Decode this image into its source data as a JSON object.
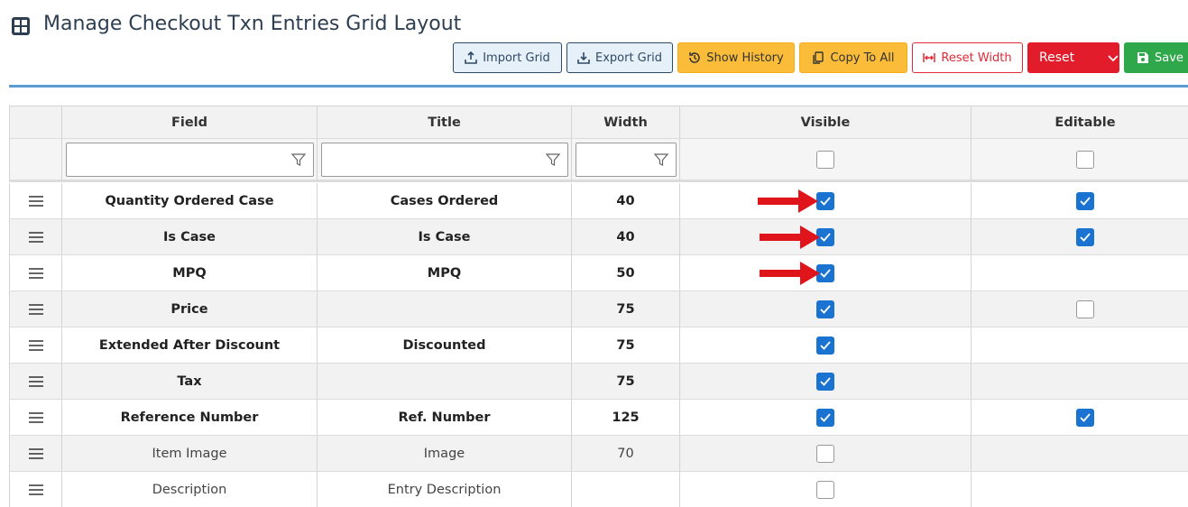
{
  "header": {
    "title": "Manage Checkout Txn Entries Grid Layout"
  },
  "buttons": [
    "Import Grid",
    "Export Grid",
    "Show History",
    "Copy To All",
    "Reset Width",
    "Reset",
    "Save"
  ],
  "table": {
    "columns": [
      "Field",
      "Title",
      "Width",
      "Visible",
      "Editable"
    ],
    "filters": {
      "visible": false,
      "editable": false
    },
    "rows": [
      {
        "field": "Quantity Ordered Case",
        "title": "Cases Ordered",
        "width": 40,
        "visible": true,
        "editable": true,
        "bold": true
      },
      {
        "field": "Is Case",
        "title": "Is Case",
        "width": 40,
        "visible": true,
        "editable": true,
        "bold": true
      },
      {
        "field": "MPQ",
        "title": "MPQ",
        "width": 50,
        "visible": true,
        "editable": null,
        "bold": true
      },
      {
        "field": "Price",
        "title": null,
        "width": 75,
        "visible": true,
        "editable": false,
        "bold": true
      },
      {
        "field": "Extended After Discount",
        "title": "Discounted",
        "width": 75,
        "visible": true,
        "editable": null,
        "bold": true
      },
      {
        "field": "Tax",
        "title": null,
        "width": 75,
        "visible": true,
        "editable": null,
        "bold": true
      },
      {
        "field": "Reference Number",
        "title": "Ref. Number",
        "width": 125,
        "visible": true,
        "editable": true,
        "bold": true
      },
      {
        "field": "Item Image",
        "title": "Image",
        "width": 70,
        "visible": false,
        "editable": null,
        "bold": false
      },
      {
        "field": "Description",
        "title": "Entry Description",
        "width": null,
        "visible": false,
        "editable": null,
        "bold": false
      }
    ]
  }
}
